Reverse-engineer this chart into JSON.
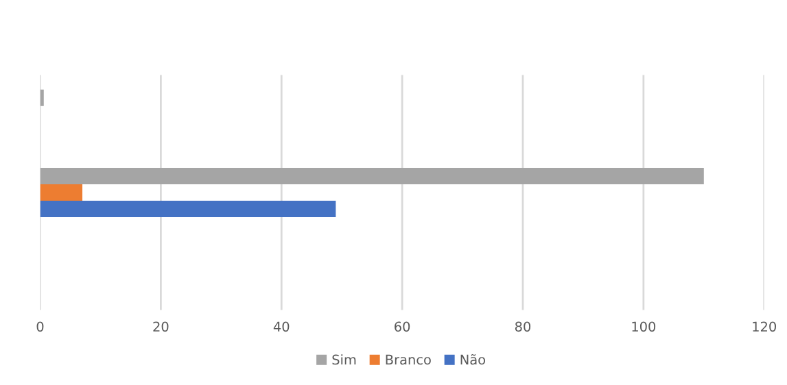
{
  "chart_data": {
    "type": "bar",
    "orientation": "horizontal",
    "categories": [
      null,
      null,
      null
    ],
    "series": [
      {
        "name": "Sim",
        "color": "#a5a5a5",
        "values": [
          0.6,
          110,
          null
        ]
      },
      {
        "name": "Branco",
        "color": "#ed7d31",
        "values": [
          null,
          7,
          null
        ]
      },
      {
        "name": "Não",
        "color": "#4472c4",
        "values": [
          null,
          49,
          null
        ]
      }
    ],
    "xlim": [
      0,
      120
    ],
    "xticks": [
      0,
      20,
      40,
      60,
      80,
      100,
      120
    ],
    "grid": "x",
    "legend": "bottom"
  }
}
